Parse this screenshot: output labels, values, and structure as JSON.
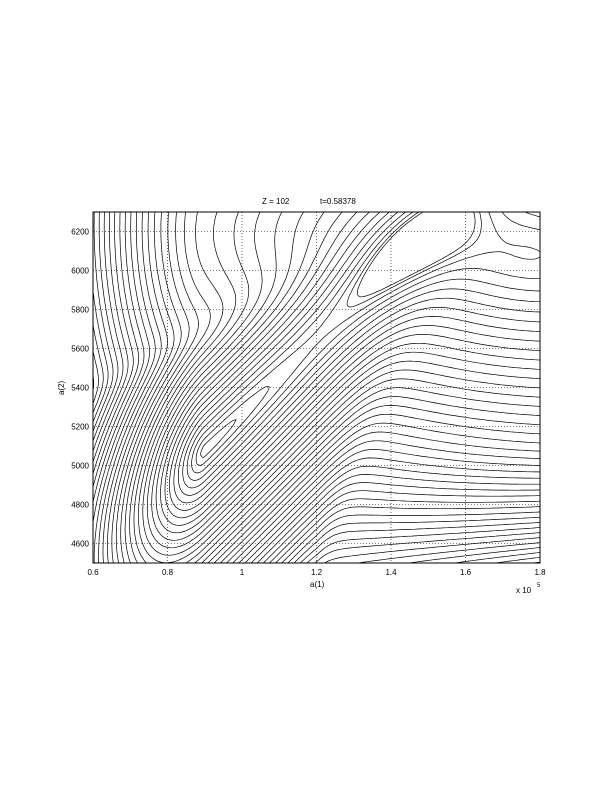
{
  "chart_data": {
    "type": "contour",
    "title_left": "Z = 102",
    "title_right": "t=0.58378",
    "xlabel": "a(1)",
    "ylabel": "a(2)",
    "xlim": [
      60000,
      180000
    ],
    "ylim": [
      4500,
      6300
    ],
    "x_ticks": [
      "0.6",
      "0.8",
      "1",
      "1.2",
      "1.4",
      "1.6",
      "1.8"
    ],
    "x_tick_values": [
      0.6,
      0.8,
      1.0,
      1.2,
      1.4,
      1.6,
      1.8
    ],
    "x_multiplier": "x 10",
    "x_multiplier_exp": "5",
    "y_ticks": [
      "4600",
      "4800",
      "5000",
      "5200",
      "5400",
      "5600",
      "5800",
      "6000",
      "6200"
    ],
    "y_tick_values": [
      4600,
      4800,
      5000,
      5200,
      5400,
      5600,
      5800,
      6000,
      6200
    ],
    "grid": true,
    "grid_style": "dotted",
    "line_color": "#000000",
    "minima": [
      {
        "a1": 0.9,
        "a2": 5050
      },
      {
        "a1": 1.75,
        "a2": 6100
      }
    ]
  }
}
